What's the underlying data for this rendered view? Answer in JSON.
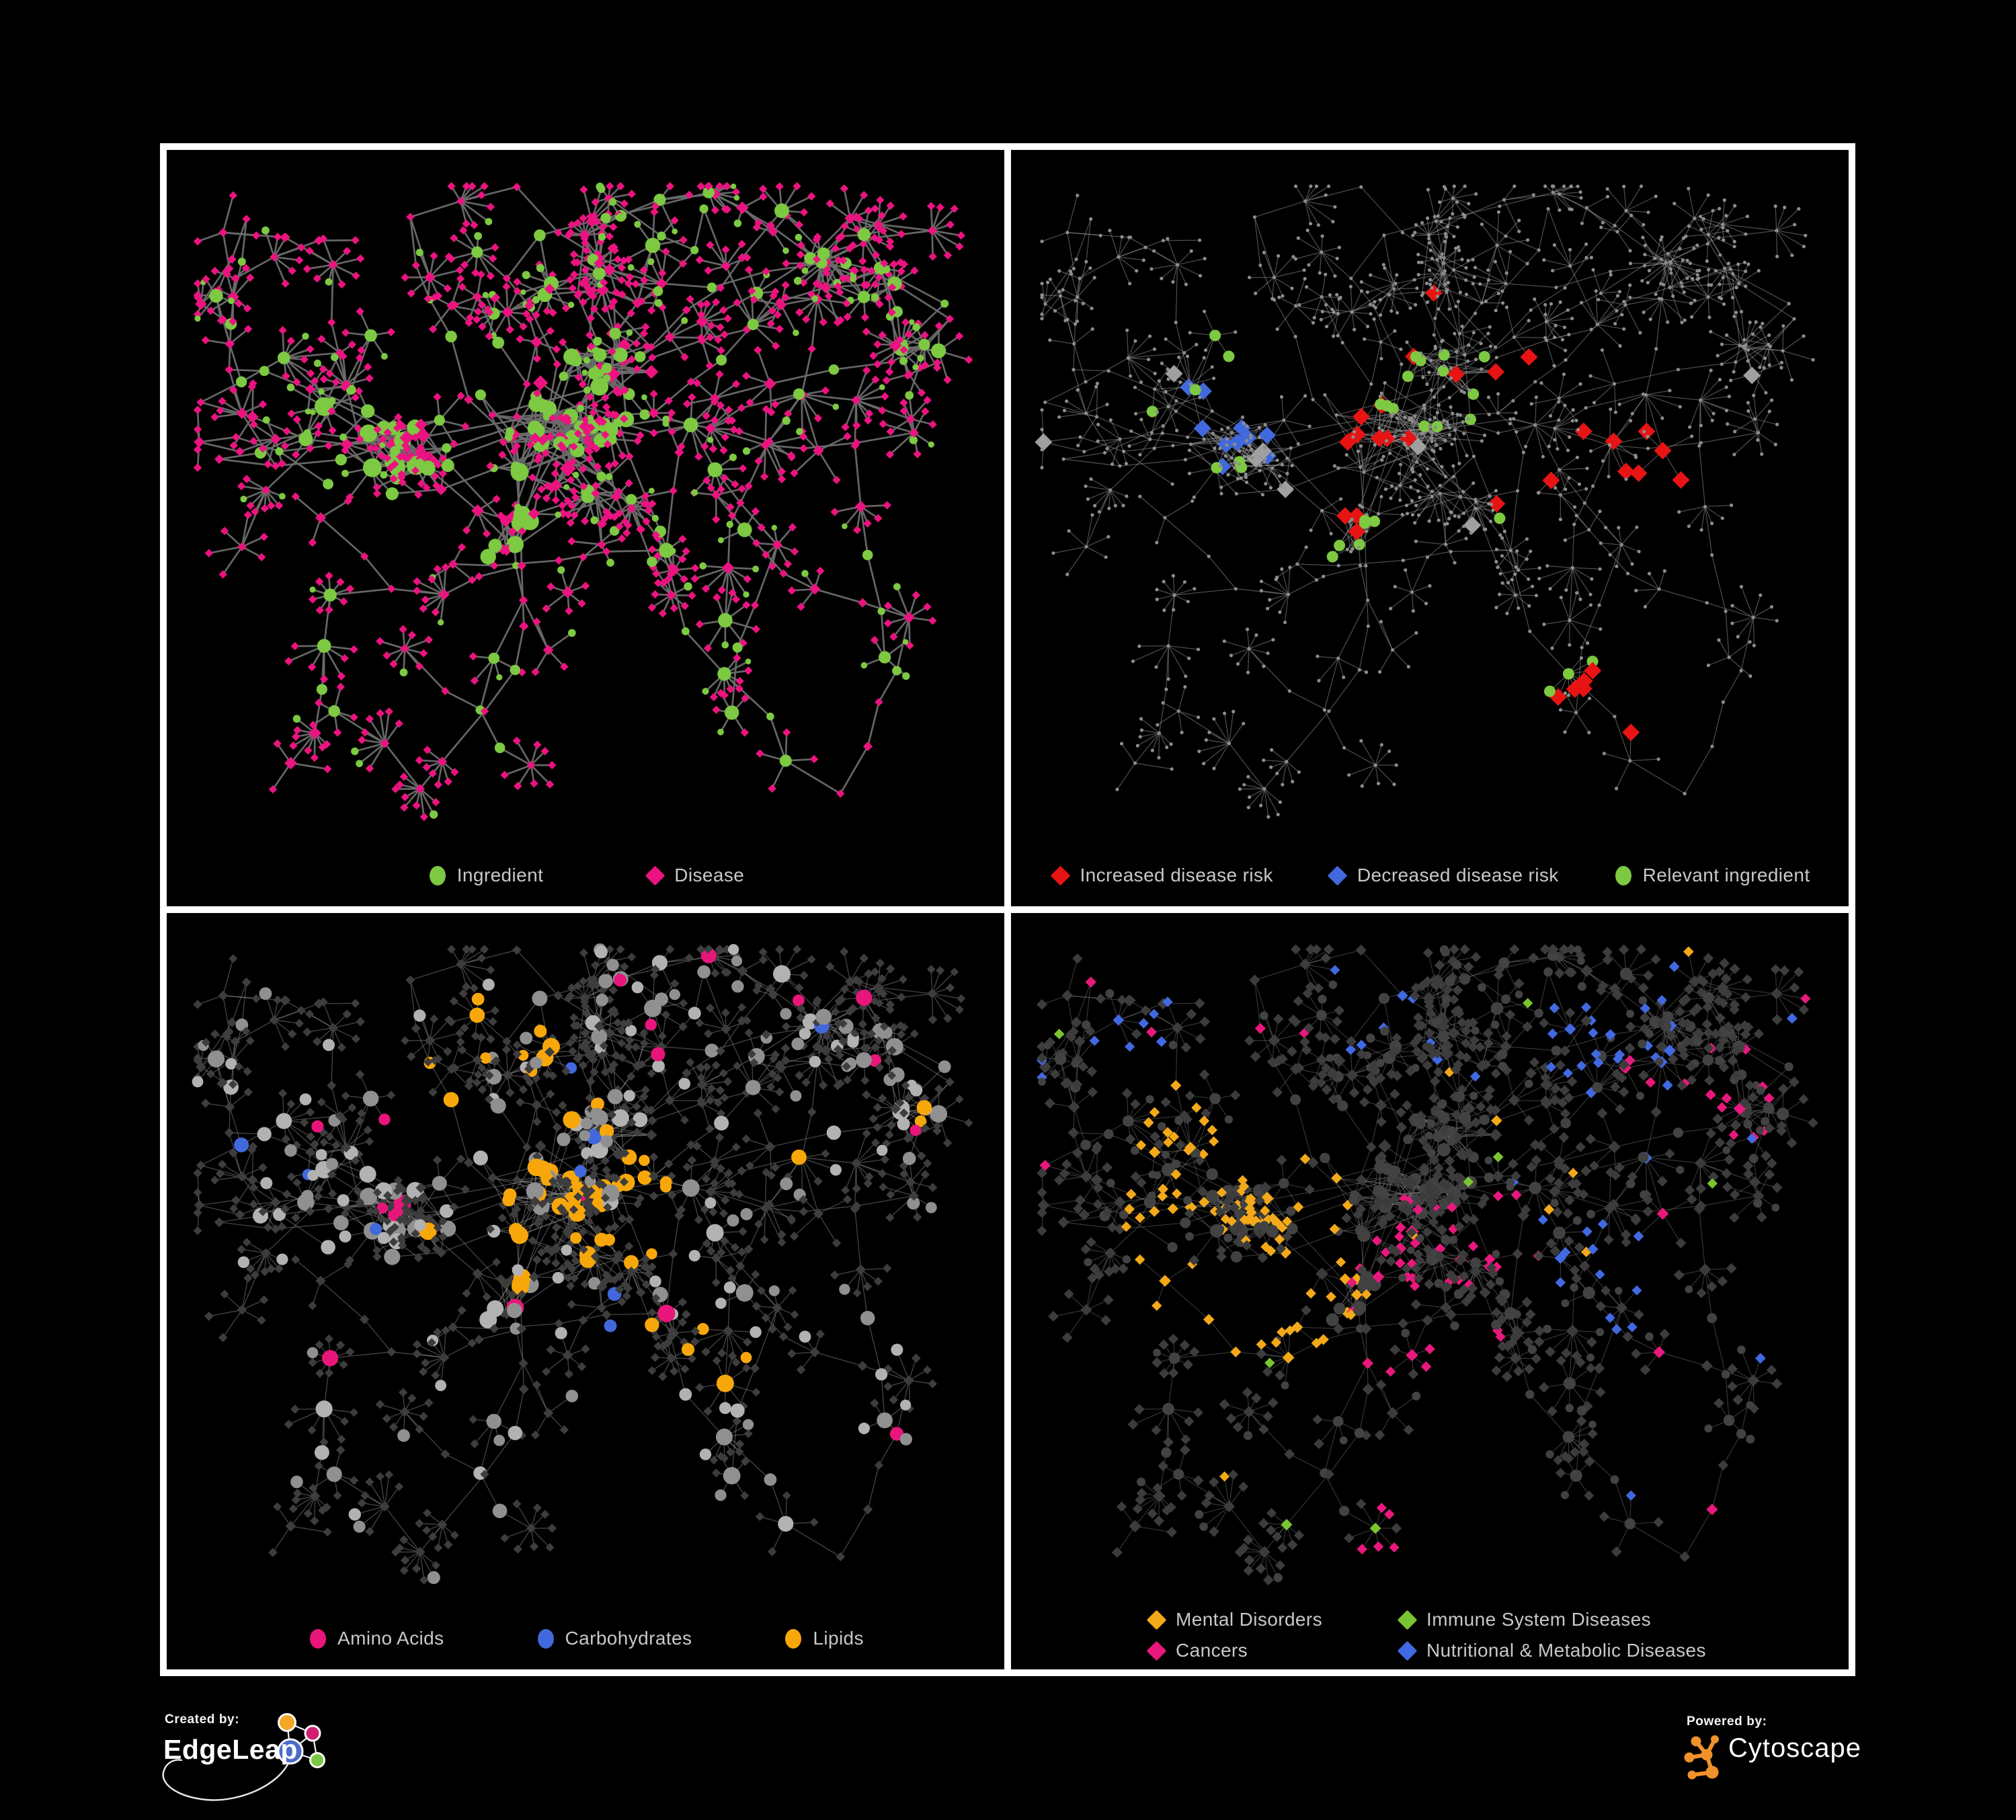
{
  "page": {
    "background": "#000000",
    "frame_color": "#ffffff",
    "legend_text_color": "#c8c8c8"
  },
  "panels": [
    {
      "id": "ingredient-disease",
      "legend": [
        {
          "shape": "circle",
          "color": "#7dc942",
          "label": "Ingredient"
        },
        {
          "shape": "diamond",
          "color": "#eb1380",
          "label": "Disease"
        }
      ]
    },
    {
      "id": "disease-risk",
      "legend": [
        {
          "shape": "diamond",
          "color": "#e81414",
          "label": "Increased disease risk"
        },
        {
          "shape": "diamond",
          "color": "#4169dd",
          "label": "Decreased disease risk"
        },
        {
          "shape": "circle",
          "color": "#7dc942",
          "label": "Relevant ingredient"
        }
      ]
    },
    {
      "id": "nutrient-categories",
      "legend": [
        {
          "shape": "circle",
          "color": "#e8167b",
          "label": "Amino Acids"
        },
        {
          "shape": "circle",
          "color": "#4169dd",
          "label": "Carbohydrates"
        },
        {
          "shape": "circle",
          "color": "#f8a70b",
          "label": "Lipids"
        }
      ]
    },
    {
      "id": "disease-categories",
      "legend": [
        {
          "shape": "diamond",
          "color": "#f3a918",
          "label": "Mental Disorders"
        },
        {
          "shape": "diamond",
          "color": "#7ac432",
          "label": "Immune System Diseases"
        },
        {
          "shape": "diamond",
          "color": "#e8187d",
          "label": "Cancers"
        },
        {
          "shape": "diamond",
          "color": "#4169e1",
          "label": "Nutritional & Metabolic Diseases"
        }
      ]
    }
  ],
  "network": {
    "seed": 20177,
    "styles": {
      "edge_grey_dark": "#6c6c6c",
      "edge_grey_light": "#9a9a9a",
      "node_grey_light": "#b2b2b2",
      "node_grey_mid": "#909090",
      "node_grey_dark": "#3d3d3d",
      "node_grey_dim": "#8d8d8d",
      "neutral_highlight": "#a0a0a0",
      "panel4_base": "#3c3c3c",
      "panel4_ingredient": "#424242"
    }
  },
  "footer": {
    "created_by_label": "Created by:",
    "created_by_name": "EdgeLeap",
    "powered_by_label": "Powered by:",
    "powered_by_name": "Cytoscape",
    "edgeleap_logo_colors": {
      "orange": "#f5a623",
      "magenta": "#cf1f6e",
      "blue": "#4a6bc9",
      "green": "#7ac943"
    },
    "cytoscape_logo_color": "#f0922b"
  }
}
